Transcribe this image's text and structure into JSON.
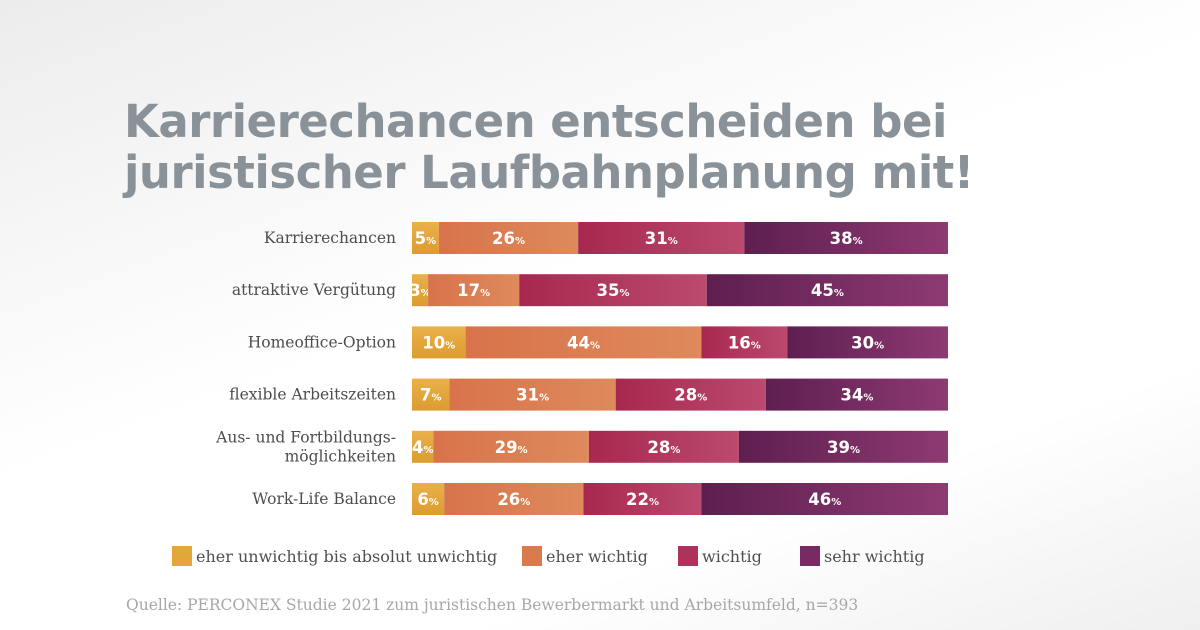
{
  "title_lines": [
    "Karrierechancen entscheiden bei",
    "juristischer Laufbahnplanung mit!"
  ],
  "source": "Quelle: PERCONEX Studie 2021 zum juristischen Bewerbermarkt und Arbeitsumfeld, n=393",
  "legend": [
    {
      "label": "eher unwichtig bis absolut unwichtig",
      "color": "#e3a63a"
    },
    {
      "label": "eher wichtig",
      "color": "#d97a4f"
    },
    {
      "label": "wichtig",
      "color": "#b0325a"
    },
    {
      "label": "sehr wichtig",
      "color": "#7a2a62"
    }
  ],
  "chart_data": {
    "type": "bar",
    "orientation": "horizontal",
    "stacked": true,
    "unit": "%",
    "categories": [
      [
        "Karrierechancen"
      ],
      [
        "attraktive Vergütung"
      ],
      [
        "Homeoffice-Option"
      ],
      [
        "flexible Arbeitszeiten"
      ],
      [
        "Aus- und Fortbildungs-",
        "möglichkeiten"
      ],
      [
        "Work-Life Balance"
      ]
    ],
    "series": [
      {
        "name": "eher unwichtig bis absolut unwichtig",
        "color": "#e3a63a",
        "values": [
          5,
          3,
          10,
          7,
          4,
          6
        ]
      },
      {
        "name": "eher wichtig",
        "color": "#d97a4f",
        "values": [
          26,
          17,
          44,
          31,
          29,
          26
        ]
      },
      {
        "name": "wichtig",
        "color": "#b0325a",
        "values": [
          31,
          35,
          16,
          28,
          28,
          22
        ]
      },
      {
        "name": "sehr wichtig",
        "color": "#7a2a62",
        "values": [
          38,
          45,
          30,
          34,
          39,
          46
        ]
      }
    ]
  }
}
